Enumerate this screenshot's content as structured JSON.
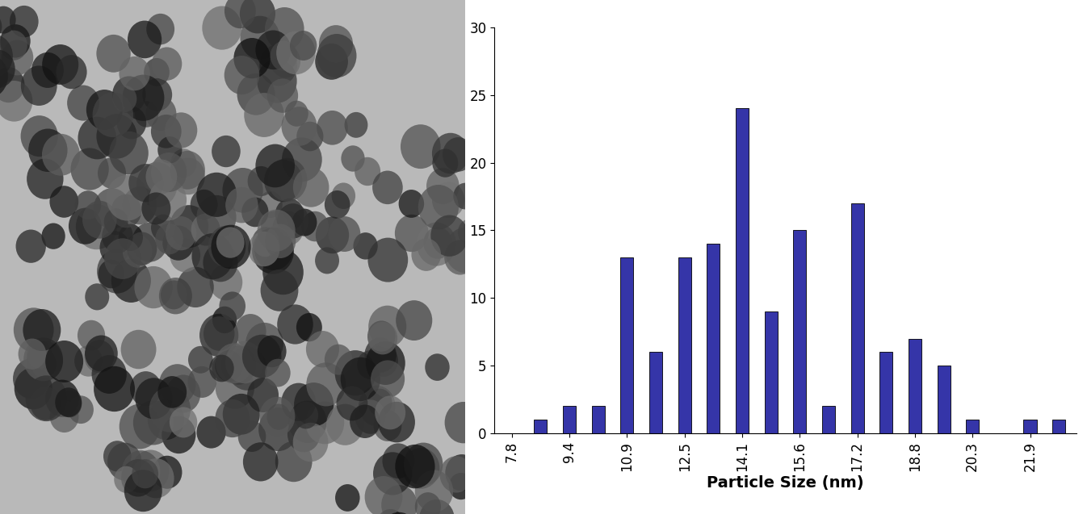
{
  "chart_data": {
    "type": "bar",
    "x_label": "Particle Size (nm)",
    "categories": [
      "7.8",
      null,
      "9.4",
      null,
      "10.9",
      null,
      "12.5",
      null,
      "14.1",
      null,
      "15.6",
      null,
      "17.2",
      null,
      "18.8",
      null,
      "20.3",
      null,
      "21.9",
      null
    ],
    "values": [
      0,
      1,
      2,
      2,
      13,
      6,
      13,
      14,
      24,
      9,
      15,
      2,
      17,
      6,
      7,
      5,
      1,
      0,
      1,
      1
    ],
    "color": "#3535a8",
    "ylim": [
      0,
      30
    ],
    "yticks": [
      0,
      5,
      10,
      15,
      20,
      25,
      30
    ],
    "grid": false
  }
}
